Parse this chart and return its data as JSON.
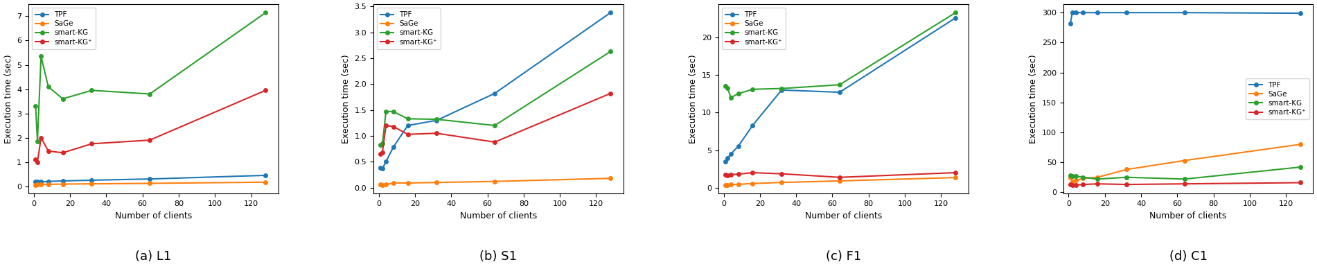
{
  "x_clients": [
    1,
    2,
    4,
    8,
    16,
    32,
    64,
    128
  ],
  "subplot_titles": [
    "(a) L1",
    "(b) S1",
    "(c) F1",
    "(d) C1"
  ],
  "xlabel": "Number of clients",
  "ylabel": "Execution time (sec)",
  "legend_labels": [
    "TPF",
    "SaGe",
    "smart-KG",
    "smart-KG⁺"
  ],
  "colors": [
    "#1f77b4",
    "#ff7f0e",
    "#2ca02c",
    "#d62728"
  ],
  "marker": "o",
  "markersize": 4,
  "linewidth": 1.5,
  "L1": {
    "TPF": [
      0.18,
      0.18,
      0.18,
      0.2,
      0.22,
      0.25,
      0.3,
      0.45
    ],
    "SaGe": [
      0.05,
      0.07,
      0.08,
      0.08,
      0.09,
      0.1,
      0.12,
      0.17
    ],
    "smart_KG": [
      3.3,
      1.85,
      5.35,
      4.1,
      3.6,
      3.95,
      3.8,
      7.15
    ],
    "smart_KGp": [
      1.1,
      1.0,
      2.0,
      1.45,
      1.38,
      1.75,
      1.9,
      3.95
    ]
  },
  "S1": {
    "TPF": [
      0.38,
      0.37,
      0.5,
      0.78,
      1.2,
      1.3,
      1.82,
      3.38
    ],
    "SaGe": [
      0.06,
      0.05,
      0.06,
      0.09,
      0.09,
      0.1,
      0.12,
      0.18
    ],
    "smart_KG": [
      0.83,
      0.85,
      1.47,
      1.47,
      1.33,
      1.32,
      1.2,
      2.63
    ],
    "smart_KGp": [
      0.65,
      0.68,
      1.2,
      1.18,
      1.03,
      1.05,
      0.88,
      1.82
    ]
  },
  "F1": {
    "TPF": [
      3.5,
      3.9,
      4.5,
      5.5,
      8.3,
      13.0,
      12.7,
      22.6
    ],
    "SaGe": [
      0.35,
      0.38,
      0.4,
      0.45,
      0.55,
      0.7,
      0.9,
      1.35
    ],
    "smart_KG": [
      13.5,
      13.3,
      12.0,
      12.5,
      13.1,
      13.2,
      13.7,
      23.3
    ],
    "smart_KGp": [
      1.7,
      1.65,
      1.75,
      1.8,
      2.0,
      1.85,
      1.38,
      2.0
    ]
  },
  "C1": {
    "TPF": [
      282,
      300,
      300,
      300,
      300,
      300,
      300,
      299
    ],
    "SaGe": [
      25,
      18,
      20,
      23,
      25,
      38,
      53,
      80
    ],
    "smart_KG": [
      28,
      27,
      27,
      25,
      22,
      25,
      22,
      42
    ],
    "smart_KGp": [
      13,
      12,
      12,
      13,
      14,
      13,
      14,
      16
    ]
  },
  "yticks_L1": [
    0,
    1,
    2,
    3,
    4,
    5,
    6,
    7
  ],
  "yticks_S1": [
    0.0,
    0.5,
    1.0,
    1.5,
    2.0,
    2.5,
    3.0,
    3.5
  ],
  "yticks_F1": [
    0,
    5,
    10,
    15,
    20
  ],
  "yticks_C1": [
    0,
    50,
    100,
    150,
    200,
    250,
    300
  ],
  "legend_loc": [
    "upper left",
    "upper left",
    "upper left",
    "center right"
  ],
  "xticks": [
    0,
    20,
    40,
    60,
    80,
    100,
    120
  ],
  "xlim": [
    -3,
    135
  ]
}
